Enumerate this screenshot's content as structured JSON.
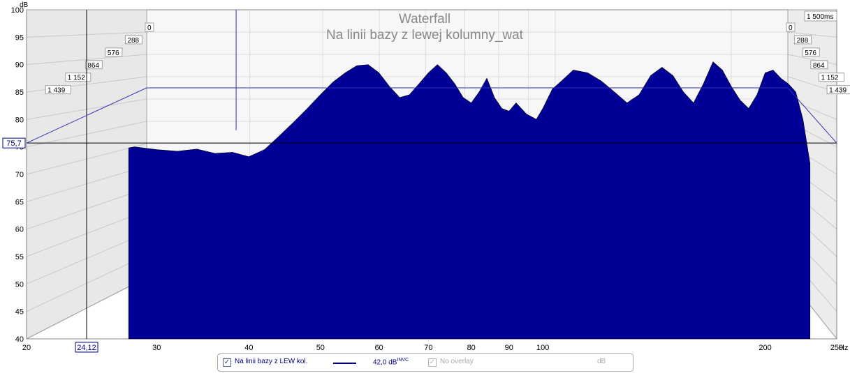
{
  "chart_data": {
    "type": "area",
    "title": "Waterfall",
    "subtitle": "Na linii bazy z lewej kolumny_wat",
    "ylabel": "dB",
    "xunit": "Hz",
    "xscale": "log",
    "xlim": [
      20,
      250
    ],
    "ylim": [
      40,
      100
    ],
    "yticks": [
      "40",
      "45",
      "50",
      "55",
      "60",
      "65",
      "70",
      "75",
      "80",
      "85",
      "90",
      "95",
      "100"
    ],
    "xticks": [
      "20",
      "30",
      "40",
      "50",
      "60",
      "70",
      "80",
      "90",
      "100",
      "200",
      "250"
    ],
    "time_labels": [
      "0",
      "288",
      "576",
      "864",
      "1 152",
      "1 439"
    ],
    "time_end_label": "1 500ms",
    "cursor_x_label": "24,12",
    "cursor_y_label": "75,7",
    "surface_color": "#0000a0",
    "front_slice": {
      "x": [
        27.5,
        28,
        30,
        32,
        34,
        36,
        38,
        40,
        42,
        44,
        46,
        48,
        50,
        52,
        54,
        56,
        58,
        60,
        62,
        64,
        66,
        68,
        70,
        72,
        74,
        76,
        78,
        80,
        82,
        84,
        86,
        88,
        90,
        92,
        95,
        98,
        100,
        103,
        106,
        110,
        115,
        120,
        125,
        130,
        135,
        140,
        145,
        150,
        155,
        160,
        165,
        170,
        175,
        180,
        185,
        190,
        195,
        200,
        205,
        210,
        215,
        220,
        225,
        230
      ],
      "y": [
        74.8,
        75.0,
        74.5,
        74.2,
        74.6,
        73.8,
        74.0,
        73.2,
        74.5,
        77.0,
        79.5,
        82.0,
        84.5,
        86.8,
        88.5,
        89.8,
        90.0,
        88.5,
        86.0,
        84.0,
        84.5,
        86.5,
        88.5,
        90.0,
        88.5,
        86.5,
        84.0,
        83.0,
        85.0,
        87.5,
        84.0,
        82.0,
        81.5,
        83.0,
        81.0,
        80.0,
        82.0,
        85.5,
        87.0,
        89.0,
        88.5,
        87.0,
        85.0,
        83.0,
        84.5,
        88.0,
        89.5,
        88.0,
        85.0,
        83.0,
        86.5,
        90.5,
        89.0,
        86.0,
        83.5,
        82.0,
        84.5,
        88.5,
        89.0,
        87.5,
        86.5,
        85.0,
        80.0,
        72.0
      ]
    },
    "decay_slices": 60,
    "legend": {
      "series_name": "Na linii bazy z LEW kol.",
      "series_value": "42,0 dB",
      "series_value_sup": "INVC",
      "overlay_label": "No overlay",
      "overlay_unit": "dB"
    }
  }
}
